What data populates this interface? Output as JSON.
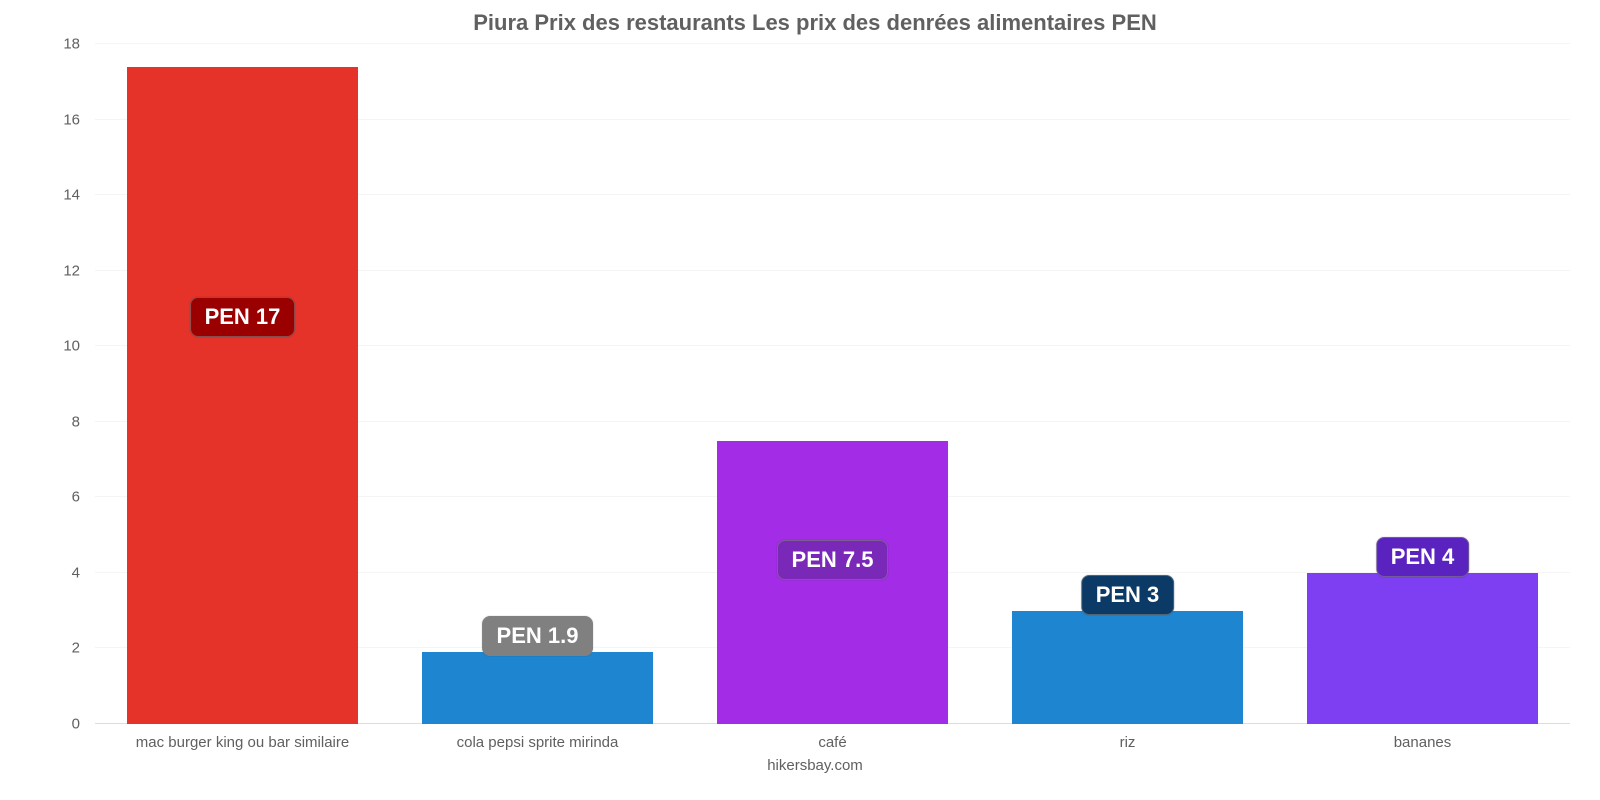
{
  "chart": {
    "type": "bar",
    "title": "Piura Prix des restaurants Les prix des denrées alimentaires PEN",
    "title_fontsize": 22,
    "title_color": "#606060",
    "background_color": "#ffffff",
    "grid_color": "#f5f5f5",
    "axis_color": "#dddddd",
    "label_color": "#606060",
    "label_fontsize": 15,
    "ylim": [
      0,
      18
    ],
    "ytick_step": 2,
    "yticks": [
      0,
      2,
      4,
      6,
      8,
      10,
      12,
      14,
      16,
      18
    ],
    "bar_width": 0.78,
    "categories": [
      "mac burger king ou bar similaire",
      "cola pepsi sprite mirinda",
      "café",
      "riz",
      "bananes"
    ],
    "values": [
      17.4,
      1.9,
      7.5,
      3,
      4
    ],
    "value_labels": [
      "PEN 17",
      "PEN 1.9",
      "PEN 7.5",
      "PEN 3",
      "PEN 4"
    ],
    "bar_colors": [
      "#e6332a",
      "#1e85d0",
      "#a32de6",
      "#1e85d0",
      "#7e3ff2"
    ],
    "badge_colors": [
      "#9a0000",
      "#808080",
      "#7a28b8",
      "#0b3a66",
      "#5a23c0"
    ],
    "badge_fontsize": 22,
    "badge_text_color": "#ffffff",
    "credit": "hikersbay.com"
  }
}
